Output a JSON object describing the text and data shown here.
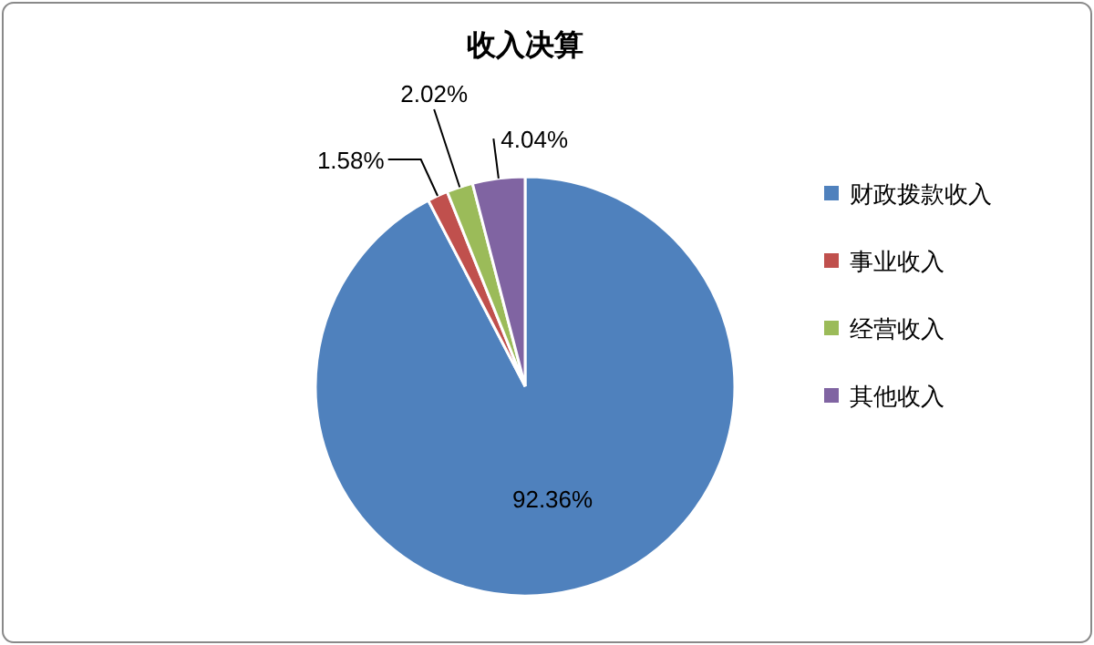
{
  "chart_data": {
    "type": "pie",
    "title": "收入决算",
    "categories": [
      "财政拨款收入",
      "事业收入",
      "经营收入",
      "其他收入"
    ],
    "values": [
      92.36,
      1.58,
      2.02,
      4.04
    ],
    "colors": [
      "#4f81bd",
      "#c0504d",
      "#9bbb59",
      "#8064a2"
    ],
    "value_labels": [
      "92.36%",
      "1.58%",
      "2.02%",
      "4.04%"
    ],
    "legend": "right"
  }
}
